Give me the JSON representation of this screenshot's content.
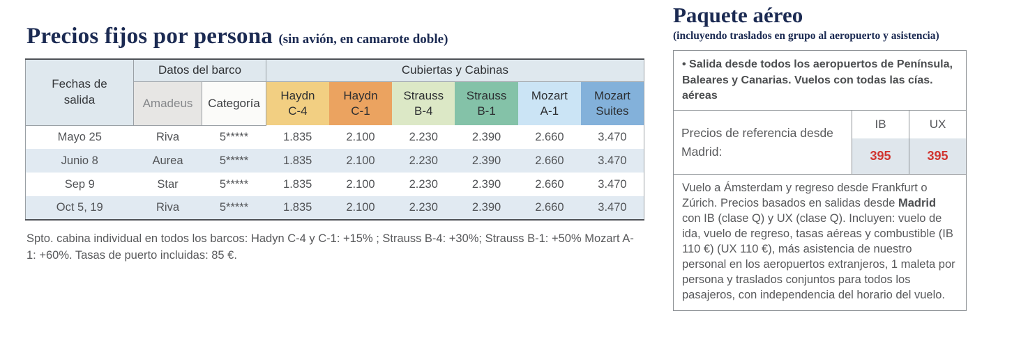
{
  "left": {
    "title": "Precios fijos por persona",
    "title_note": "(sin avión, en camarote doble)",
    "table": {
      "col_fechas": "Fechas de salida",
      "group_barco": "Datos del barco",
      "group_cabinas": "Cubiertas y Cabinas",
      "sub_amadeus": "Amadeus",
      "sub_categoria": "Categoría",
      "cabins": [
        {
          "line1": "Haydn",
          "line2": "C-4",
          "color": "#f2cf82"
        },
        {
          "line1": "Haydn",
          "line2": "C-1",
          "color": "#eba360"
        },
        {
          "line1": "Strauss",
          "line2": "B-4",
          "color": "#dce8c6"
        },
        {
          "line1": "Strauss",
          "line2": "B-1",
          "color": "#84c2a8"
        },
        {
          "line1": "Mozart",
          "line2": "A-1",
          "color": "#cbe4f5"
        },
        {
          "line1": "Mozart",
          "line2": "Suites",
          "color": "#83b1da"
        }
      ],
      "rows": [
        {
          "fecha": "Mayo 25",
          "amadeus": "Riva",
          "categoria": "5*****",
          "prices": [
            "1.835",
            "2.100",
            "2.230",
            "2.390",
            "2.660",
            "3.470"
          ]
        },
        {
          "fecha": "Junio 8",
          "amadeus": "Aurea",
          "categoria": "5*****",
          "prices": [
            "1.835",
            "2.100",
            "2.230",
            "2.390",
            "2.660",
            "3.470"
          ]
        },
        {
          "fecha": "Sep 9",
          "amadeus": "Star",
          "categoria": "5*****",
          "prices": [
            "1.835",
            "2.100",
            "2.230",
            "2.390",
            "2.660",
            "3.470"
          ]
        },
        {
          "fecha": "Oct 5, 19",
          "amadeus": "Riva",
          "categoria": "5*****",
          "prices": [
            "1.835",
            "2.100",
            "2.230",
            "2.390",
            "2.660",
            "3.470"
          ]
        }
      ]
    },
    "footnote": "Spto. cabina individual en todos los barcos: Hadyn C-4 y C-1: +15% ;  Strauss B-4: +30%;  Strauss B-1: +50% Mozart A-1: +60%. Tasas de puerto incluidas: 85 €."
  },
  "right": {
    "title": "Paquete aéreo",
    "subtitle": "(incluyendo traslados en grupo al aeropuerto y asistencia)",
    "bullet": "• Salida desde todos los aeropuertos de Península, Baleares y Canarias. Vuelos con todas las cías. aéreas",
    "ref_label": "Precios de referencia desde Madrid:",
    "airlines": [
      {
        "code": "IB",
        "price": "395"
      },
      {
        "code": "UX",
        "price": "395"
      }
    ],
    "description": {
      "before": "Vuelo a Ámsterdam y regreso desde Frankfurt o Zúrich. Precios basados en salidas desde ",
      "bold": "Madrid",
      "after": " con IB (clase Q) y UX (clase Q). Incluyen: vuelo de ida, vuelo de regreso, tasas aéreas y combustible (IB 110 €) (UX 110 €), más asistencia de nuestro personal en los aeropuertos extranjeros, 1 maleta por persona y traslados conjuntos para todos los pasajeros, con independencia del horario del vuelo."
    }
  },
  "colors": {
    "title_navy": "#1b2a52",
    "header_bg": "#dfe8ee",
    "row_alt_bg": "#e1eaf2",
    "amadeus_bg": "#e7e6e4",
    "price_red": "#d0342f",
    "price_cell_bg": "#dfe6ec"
  }
}
